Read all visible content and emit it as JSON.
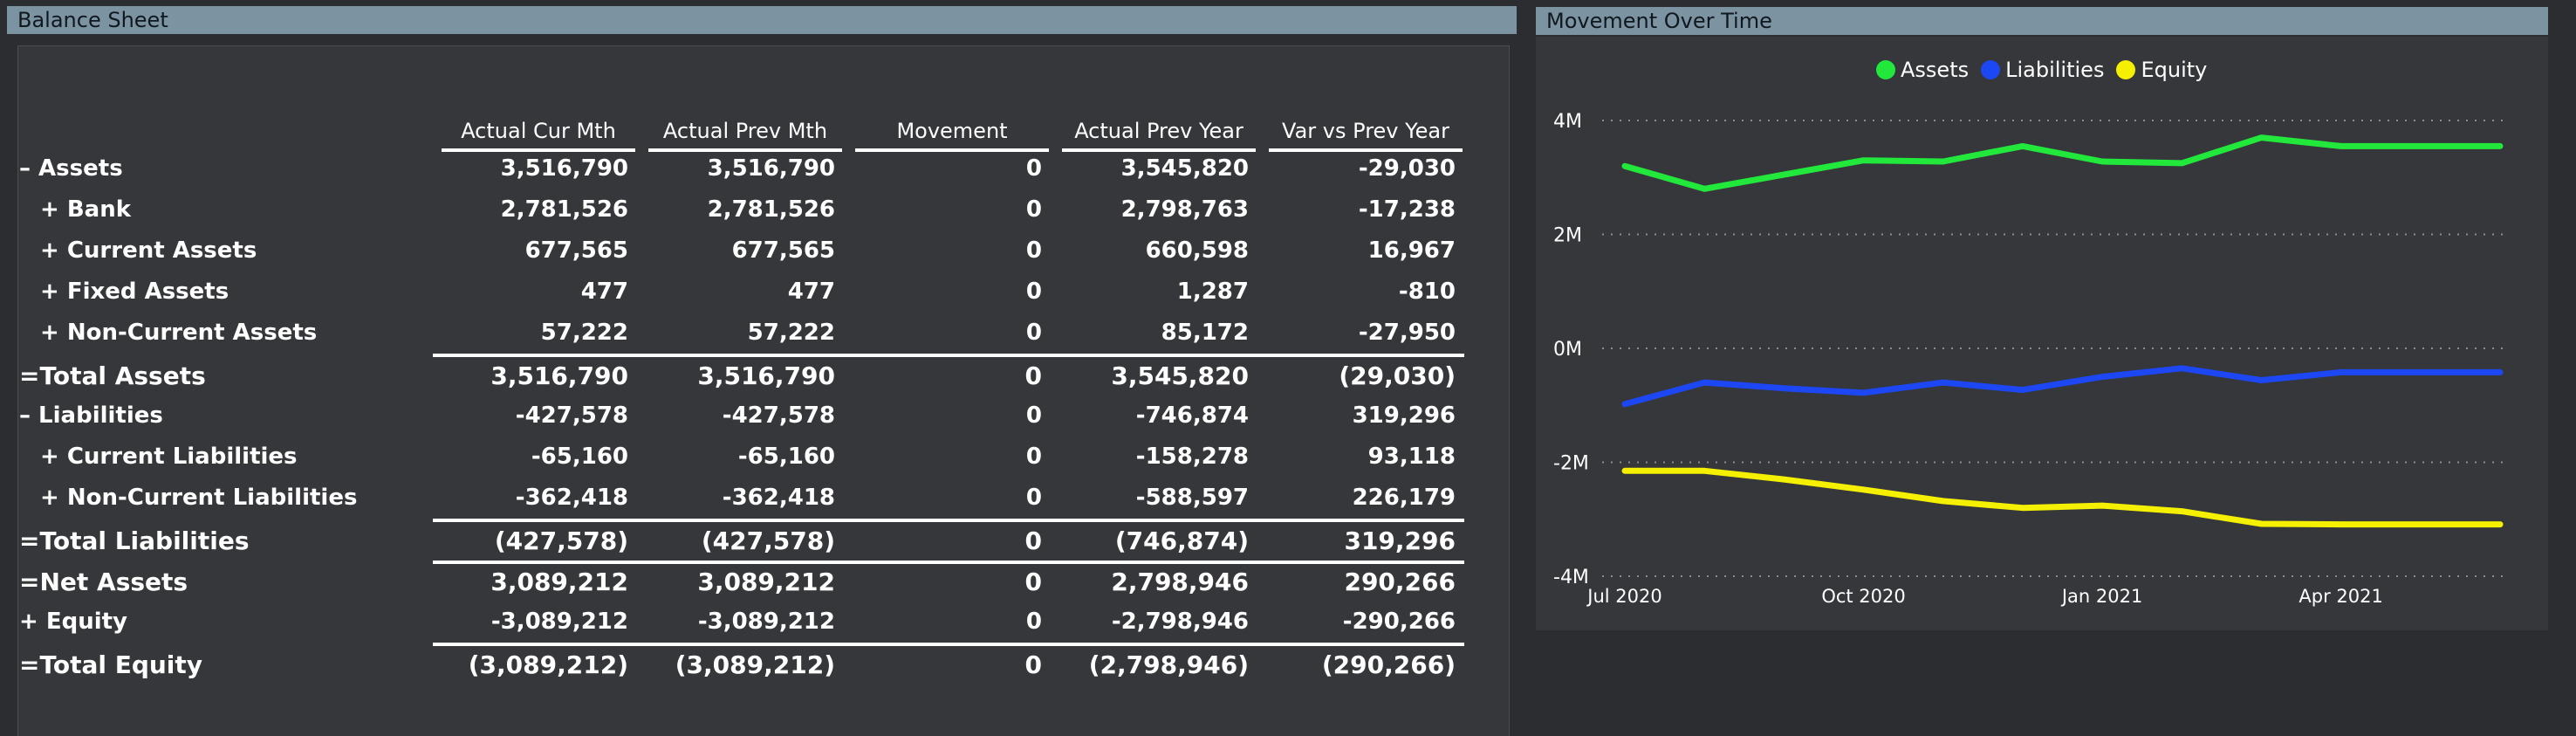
{
  "balance_sheet": {
    "title": "Balance Sheet",
    "columns": [
      "Actual Cur Mth",
      "Actual Prev Mth",
      "Movement",
      "Actual Prev Year",
      "Var vs Prev Year"
    ],
    "rows": [
      {
        "label": "– Assets",
        "values": [
          "3,516,790",
          "3,516,790",
          "0",
          "3,545,820",
          "-29,030"
        ]
      },
      {
        "label": "+ Bank",
        "values": [
          "2,781,526",
          "2,781,526",
          "0",
          "2,798,763",
          "-17,238"
        ]
      },
      {
        "label": "+ Current Assets",
        "values": [
          "677,565",
          "677,565",
          "0",
          "660,598",
          "16,967"
        ]
      },
      {
        "label": "+ Fixed Assets",
        "values": [
          "477",
          "477",
          "0",
          "1,287",
          "-810"
        ]
      },
      {
        "label": "+ Non-Current Assets",
        "values": [
          "57,222",
          "57,222",
          "0",
          "85,172",
          "-27,950"
        ]
      },
      {
        "label": "=Total Assets",
        "values": [
          "3,516,790",
          "3,516,790",
          "0",
          "3,545,820",
          "(29,030)"
        ]
      },
      {
        "label": "– Liabilities",
        "values": [
          "-427,578",
          "-427,578",
          "0",
          "-746,874",
          "319,296"
        ]
      },
      {
        "label": "+ Current Liabilities",
        "values": [
          "-65,160",
          "-65,160",
          "0",
          "-158,278",
          "93,118"
        ]
      },
      {
        "label": "+ Non-Current Liabilities",
        "values": [
          "-362,418",
          "-362,418",
          "0",
          "-588,597",
          "226,179"
        ]
      },
      {
        "label": "=Total Liabilities",
        "values": [
          "(427,578)",
          "(427,578)",
          "0",
          "(746,874)",
          "319,296"
        ]
      },
      {
        "label": "=Net Assets",
        "values": [
          "3,089,212",
          "3,089,212",
          "0",
          "2,798,946",
          "290,266"
        ]
      },
      {
        "label": "+ Equity",
        "values": [
          "-3,089,212",
          "-3,089,212",
          "0",
          "-2,798,946",
          "-290,266"
        ]
      },
      {
        "label": "=Total Equity",
        "values": [
          "(3,089,212)",
          "(3,089,212)",
          "0",
          "(2,798,946)",
          "(290,266)"
        ]
      }
    ]
  },
  "movement_chart": {
    "title": "Movement Over Time",
    "legend": [
      "Assets",
      "Liabilities",
      "Equity"
    ],
    "colors": {
      "Assets": "#22e83c",
      "Liabilities": "#1c47f2",
      "Equity": "#f5f000"
    }
  },
  "chart_data": {
    "type": "line",
    "x": [
      "Jul 2020",
      "Aug 2020",
      "Sep 2020",
      "Oct 2020",
      "Nov 2020",
      "Dec 2020",
      "Jan 2021",
      "Feb 2021",
      "Mar 2021",
      "Apr 2021",
      "May 2021",
      "Jun 2021"
    ],
    "x_tick_labels": [
      "Jul 2020",
      "Oct 2020",
      "Jan 2021",
      "Apr 2021"
    ],
    "y_tick_labels": [
      "4M",
      "2M",
      "0M",
      "-2M",
      "-4M"
    ],
    "ylim": [
      -4000000,
      4000000
    ],
    "grid": true,
    "legend_position": "top-center",
    "series": [
      {
        "name": "Assets",
        "values": [
          3200000,
          2800000,
          3050000,
          3300000,
          3280000,
          3550000,
          3280000,
          3250000,
          3700000,
          3550000,
          3550000,
          3550000
        ]
      },
      {
        "name": "Liabilities",
        "values": [
          -980000,
          -600000,
          -700000,
          -780000,
          -600000,
          -730000,
          -500000,
          -350000,
          -560000,
          -420000,
          -420000,
          -420000
        ]
      },
      {
        "name": "Equity",
        "values": [
          -2150000,
          -2150000,
          -2300000,
          -2480000,
          -2680000,
          -2800000,
          -2760000,
          -2860000,
          -3080000,
          -3090000,
          -3090000,
          -3090000
        ]
      }
    ]
  }
}
